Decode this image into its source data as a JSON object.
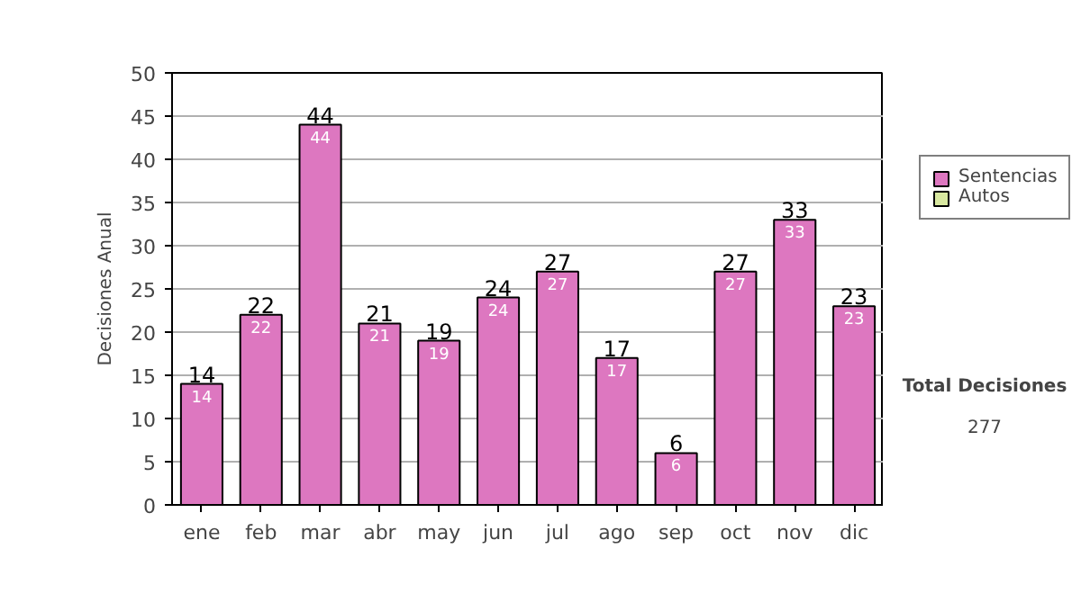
{
  "chart_data": {
    "type": "bar",
    "ylabel": "Decisiones Anual",
    "categories": [
      "ene",
      "feb",
      "mar",
      "abr",
      "may",
      "jun",
      "jul",
      "ago",
      "sep",
      "oct",
      "nov",
      "dic"
    ],
    "stacked": true,
    "series": [
      {
        "name": "Sentencias",
        "color": "#dd77c0",
        "values": [
          14,
          22,
          44,
          21,
          19,
          24,
          27,
          17,
          6,
          27,
          33,
          23
        ],
        "value_labels": [
          "14",
          "22",
          "44",
          "21",
          "19",
          "24",
          "27",
          "17",
          "6",
          "27",
          "33",
          "23"
        ]
      },
      {
        "name": "Autos",
        "color": "#d8e8a0",
        "values": [
          null,
          null,
          null,
          null,
          null,
          null,
          null,
          null,
          null,
          null,
          null,
          null
        ]
      }
    ],
    "totals": [
      "14",
      "22",
      "44",
      "21",
      "19",
      "24",
      "27",
      "17",
      "6",
      "27",
      "33",
      "23"
    ],
    "ylim": [
      0,
      50
    ],
    "yticks": [
      0,
      5,
      10,
      15,
      20,
      25,
      30,
      35,
      40,
      45,
      50
    ],
    "grid": "y",
    "legend": "right",
    "annotations": [
      "Total Decisiones",
      "277"
    ]
  }
}
